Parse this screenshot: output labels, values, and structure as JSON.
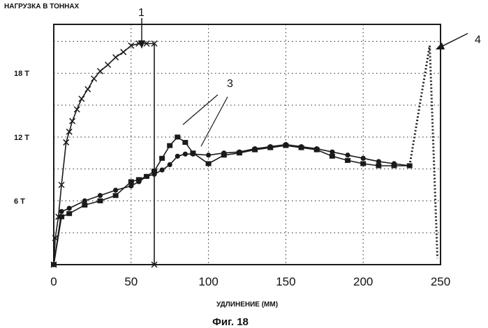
{
  "chart_data": {
    "type": "line",
    "ylabel": "НАГРУЗКА В ТОННАХ",
    "xlabel": "УДЛИНЕНИЕ (ММ)",
    "caption": "Фиг. 18",
    "xlim": [
      0,
      250
    ],
    "ylim": [
      0,
      22.6
    ],
    "x_ticks": [
      "0",
      "50",
      "100",
      "150",
      "200",
      "250"
    ],
    "x_tick_values": [
      0,
      50,
      100,
      150,
      200,
      250
    ],
    "y_ticks": [
      "6 T",
      "12 T",
      "18 T"
    ],
    "y_tick_values": [
      6,
      12,
      18
    ],
    "grid": true,
    "series": [
      {
        "name": "1",
        "marker": "x",
        "x": [
          0,
          1,
          3,
          5,
          8,
          10,
          12,
          15,
          18,
          22,
          26,
          30,
          35,
          40,
          45,
          50,
          55,
          60,
          65,
          65
        ],
        "y": [
          0,
          2.5,
          4.5,
          7.5,
          11.5,
          12.5,
          13.5,
          14.6,
          15.6,
          16.5,
          17.5,
          18.2,
          18.8,
          19.5,
          20.0,
          20.6,
          20.8,
          20.8,
          20.8,
          0
        ]
      },
      {
        "name": "3",
        "marker": "square",
        "x": [
          0,
          5,
          10,
          20,
          30,
          40,
          50,
          55,
          60,
          65,
          70,
          75,
          80,
          85,
          90,
          100,
          110,
          120,
          130,
          140,
          150,
          160,
          170,
          180,
          190,
          200,
          210,
          220,
          230
        ],
        "y": [
          0,
          4.5,
          4.8,
          5.6,
          6.0,
          6.5,
          7.8,
          8.0,
          8.3,
          8.8,
          10.0,
          11.2,
          12.0,
          11.5,
          10.5,
          9.5,
          10.3,
          10.5,
          10.8,
          11.0,
          11.2,
          11.0,
          10.8,
          10.2,
          9.8,
          9.5,
          9.3,
          9.3,
          9.3
        ]
      },
      {
        "name": "3",
        "marker": "circle",
        "x": [
          0,
          5,
          10,
          20,
          30,
          40,
          50,
          55,
          60,
          65,
          70,
          75,
          80,
          85,
          90,
          100,
          110,
          120,
          130,
          140,
          150,
          160,
          170,
          180,
          190,
          200,
          210,
          220,
          230
        ],
        "y": [
          0,
          5.0,
          5.3,
          6.0,
          6.5,
          7.0,
          7.4,
          7.8,
          8.3,
          8.5,
          8.9,
          9.4,
          10.2,
          10.4,
          10.4,
          10.3,
          10.5,
          10.6,
          10.9,
          11.1,
          11.3,
          11.1,
          10.9,
          10.6,
          10.3,
          10.0,
          9.7,
          9.5,
          9.3
        ]
      },
      {
        "name": "4",
        "marker": "none",
        "style": "dotted",
        "x": [
          230,
          243,
          248
        ],
        "y": [
          9.3,
          20.6,
          0.6
        ]
      }
    ],
    "annotations": [
      "1",
      "3",
      "4"
    ]
  },
  "colors": {
    "ink": "#1a1a1a",
    "grid": "#222222"
  }
}
